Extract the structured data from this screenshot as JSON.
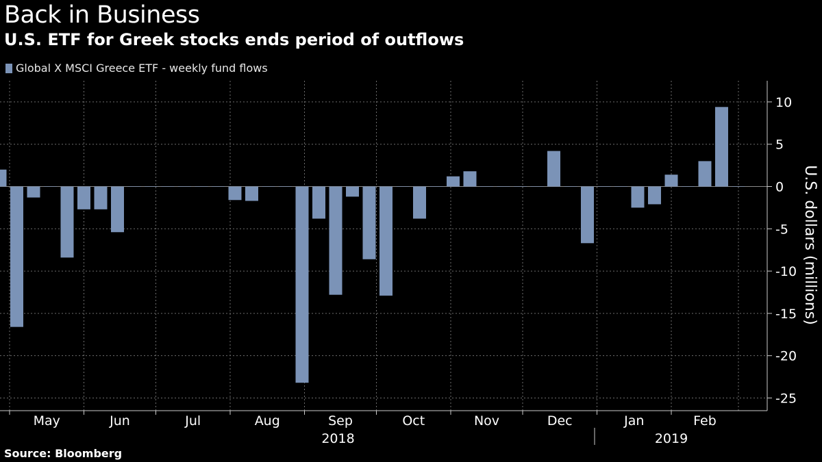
{
  "header": {
    "title": "Back in Business",
    "subtitle": "U.S. ETF for Greek stocks ends period of outflows"
  },
  "footer": {
    "source": "Source: Bloomberg"
  },
  "colors": {
    "background": "#000000",
    "bar": "#7b93b7",
    "grid": "#6e6e6e",
    "text": "#ffffff"
  },
  "chart_data": {
    "type": "bar",
    "grid": true,
    "legend_position": "top-left",
    "ylabel": "U.S. dollars (millions)",
    "ylim": [
      -26.5,
      12.5
    ],
    "yticks": [
      10,
      5,
      0,
      -5,
      -10,
      -15,
      -20,
      -25
    ],
    "y_axis_side": "right",
    "x_range": [
      "2018-04-27",
      "2019-03-13"
    ],
    "month_labels": [
      {
        "label": "May",
        "date": "2018-05-01"
      },
      {
        "label": "Jun",
        "date": "2018-06-01"
      },
      {
        "label": "Jul",
        "date": "2018-07-01"
      },
      {
        "label": "Aug",
        "date": "2018-08-01"
      },
      {
        "label": "Sep",
        "date": "2018-09-01"
      },
      {
        "label": "Oct",
        "date": "2018-10-01"
      },
      {
        "label": "Nov",
        "date": "2018-11-01"
      },
      {
        "label": "Dec",
        "date": "2018-12-01"
      },
      {
        "label": "Jan",
        "date": "2019-01-01"
      },
      {
        "label": "Feb",
        "date": "2019-02-01"
      }
    ],
    "year_labels": [
      {
        "label": "2018",
        "date": "2018-09-15"
      },
      {
        "label": "2019",
        "date": "2019-02-01"
      }
    ],
    "year_divider": "2018-12-31",
    "series": [
      {
        "name": "Global X MSCI Greece ETF - weekly fund flows",
        "dates": [
          "2018-04-27",
          "2018-05-04",
          "2018-05-11",
          "2018-05-18",
          "2018-05-25",
          "2018-06-01",
          "2018-06-08",
          "2018-06-15",
          "2018-06-22",
          "2018-06-29",
          "2018-07-06",
          "2018-07-13",
          "2018-07-20",
          "2018-07-27",
          "2018-08-03",
          "2018-08-10",
          "2018-08-17",
          "2018-08-24",
          "2018-08-31",
          "2018-09-07",
          "2018-09-14",
          "2018-09-21",
          "2018-09-28",
          "2018-10-05",
          "2018-10-12",
          "2018-10-19",
          "2018-10-26",
          "2018-11-02",
          "2018-11-09",
          "2018-11-16",
          "2018-11-23",
          "2018-11-30",
          "2018-12-07",
          "2018-12-14",
          "2018-12-21",
          "2018-12-28",
          "2019-01-04",
          "2019-01-11",
          "2019-01-18",
          "2019-01-25",
          "2019-02-01",
          "2019-02-08",
          "2019-02-15",
          "2019-02-22",
          "2019-03-01"
        ],
        "values": [
          2.0,
          -16.6,
          -1.3,
          0,
          -8.4,
          -2.7,
          -2.7,
          -5.4,
          0,
          0,
          0,
          0,
          0,
          0,
          -1.6,
          -1.7,
          0,
          0,
          -23.2,
          -3.8,
          -12.8,
          -1.2,
          -8.6,
          -12.9,
          0,
          -3.8,
          0,
          1.2,
          1.8,
          0,
          0,
          0,
          0,
          4.2,
          0,
          -6.7,
          0,
          0,
          -2.5,
          -2.1,
          1.4,
          0,
          3.0,
          9.4,
          0
        ]
      }
    ]
  }
}
